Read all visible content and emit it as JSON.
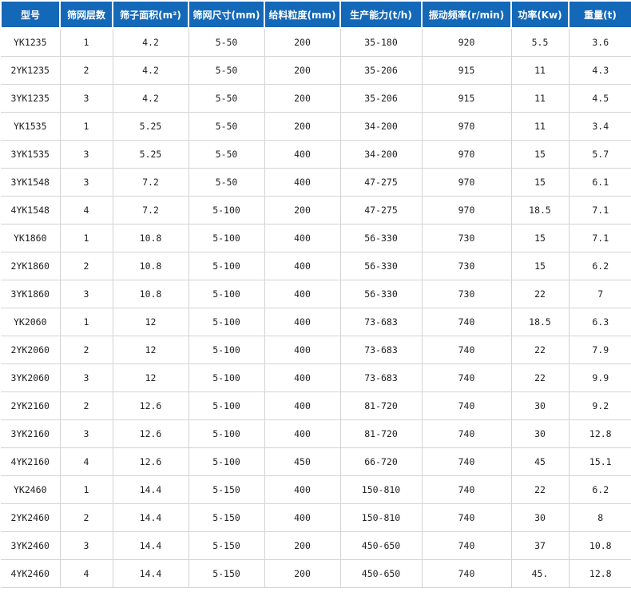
{
  "table": {
    "headers": [
      "型号",
      "筛网层数",
      "筛子面积(m²)",
      "筛网尺寸(mm)",
      "给料粒度(mm)",
      "生产能力(t/h)",
      "振动频率(r/min)",
      "功率(Kw)",
      "重量(t)"
    ],
    "rows": [
      [
        "YK1235",
        "1",
        "4.2",
        "5-50",
        "200",
        "35-180",
        "920",
        "5.5",
        "3.6"
      ],
      [
        "2YK1235",
        "2",
        "4.2",
        "5-50",
        "200",
        "35-206",
        "915",
        "11",
        "4.3"
      ],
      [
        "3YK1235",
        "3",
        "4.2",
        "5-50",
        "200",
        "35-206",
        "915",
        "11",
        "4.5"
      ],
      [
        "YK1535",
        "1",
        "5.25",
        "5-50",
        "200",
        "34-200",
        "970",
        "11",
        "3.4"
      ],
      [
        "3YK1535",
        "3",
        "5.25",
        "5-50",
        "400",
        "34-200",
        "970",
        "15",
        "5.7"
      ],
      [
        "3YK1548",
        "3",
        "7.2",
        "5-50",
        "400",
        "47-275",
        "970",
        "15",
        "6.1"
      ],
      [
        "4YK1548",
        "4",
        "7.2",
        "5-100",
        "200",
        "47-275",
        "970",
        "18.5",
        "7.1"
      ],
      [
        "YK1860",
        "1",
        "10.8",
        "5-100",
        "400",
        "56-330",
        "730",
        "15",
        "7.1"
      ],
      [
        "2YK1860",
        "2",
        "10.8",
        "5-100",
        "400",
        "56-330",
        "730",
        "15",
        "6.2"
      ],
      [
        "3YK1860",
        "3",
        "10.8",
        "5-100",
        "400",
        "56-330",
        "730",
        "22",
        "7"
      ],
      [
        "YK2060",
        "1",
        "12",
        "5-100",
        "400",
        "73-683",
        "740",
        "18.5",
        "6.3"
      ],
      [
        "2YK2060",
        "2",
        "12",
        "5-100",
        "400",
        "73-683",
        "740",
        "22",
        "7.9"
      ],
      [
        "3YK2060",
        "3",
        "12",
        "5-100",
        "400",
        "73-683",
        "740",
        "22",
        "9.9"
      ],
      [
        "2YK2160",
        "2",
        "12.6",
        "5-100",
        "400",
        "81-720",
        "740",
        "30",
        "9.2"
      ],
      [
        "3YK2160",
        "3",
        "12.6",
        "5-100",
        "400",
        "81-720",
        "740",
        "30",
        "12.8"
      ],
      [
        "4YK2160",
        "4",
        "12.6",
        "5-100",
        "450",
        "66-720",
        "740",
        "45",
        "15.1"
      ],
      [
        "YK2460",
        "1",
        "14.4",
        "5-150",
        "400",
        "150-810",
        "740",
        "22",
        "6.2"
      ],
      [
        "2YK2460",
        "2",
        "14.4",
        "5-150",
        "400",
        "150-810",
        "740",
        "30",
        "8"
      ],
      [
        "3YK2460",
        "3",
        "14.4",
        "5-150",
        "200",
        "450-650",
        "740",
        "37",
        "10.8"
      ],
      [
        "4YK2460",
        "4",
        "14.4",
        "5-150",
        "200",
        "450-650",
        "740",
        "45.",
        "12.8"
      ]
    ]
  },
  "colors": {
    "header_bg": "#1468b8",
    "header_text": "#ffffff",
    "grid_line": "#d3d3d3",
    "cell_text": "#222222"
  }
}
